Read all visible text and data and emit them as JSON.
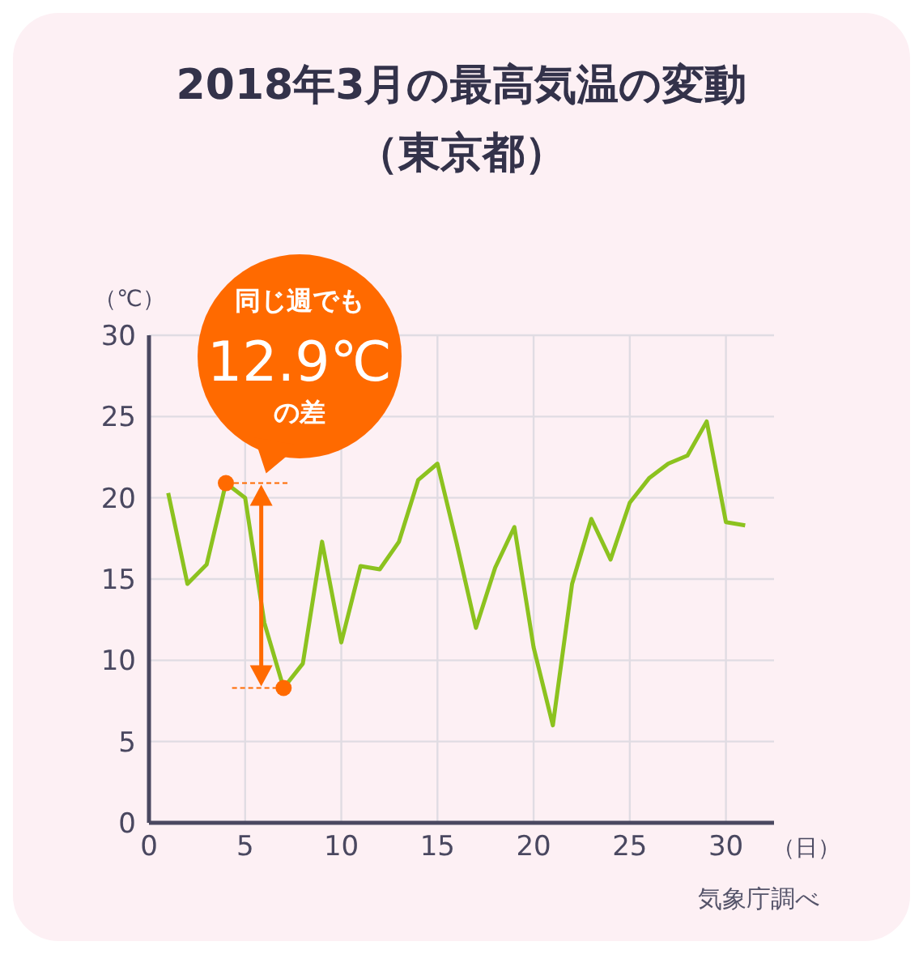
{
  "chart_data": {
    "type": "line",
    "title": "2018年3月の最高気温の変動",
    "subtitle": "（東京都）",
    "xlabel": "（日）",
    "ylabel": "（℃）",
    "x": [
      1,
      2,
      3,
      4,
      5,
      6,
      7,
      8,
      9,
      10,
      11,
      12,
      13,
      14,
      15,
      16,
      17,
      18,
      19,
      20,
      21,
      22,
      23,
      24,
      25,
      26,
      27,
      28,
      29,
      30,
      31
    ],
    "series": [
      {
        "color": "#8cc21f",
        "values": [
          20.3,
          14.7,
          15.9,
          20.9,
          20.0,
          12.3,
          8.3,
          9.8,
          17.3,
          11.1,
          15.8,
          15.6,
          17.3,
          21.1,
          22.1,
          17.2,
          12.0,
          15.7,
          18.2,
          10.8,
          6.0,
          14.7,
          18.7,
          16.2,
          19.7,
          21.2,
          22.1,
          22.6,
          24.7,
          18.5,
          18.3
        ]
      },
      {
        "type": "scatter",
        "color": "#ff6a00",
        "marker": "circle",
        "x": [
          4,
          7
        ],
        "values": [
          20.9,
          8.3
        ]
      }
    ],
    "xlim": [
      0,
      32.5
    ],
    "xticks": [
      0,
      5,
      10,
      15,
      20,
      25,
      30
    ],
    "ylim": [
      0,
      30
    ],
    "yticks": [
      0,
      5,
      10,
      15,
      20,
      25,
      30
    ],
    "grid": true,
    "annotations": [
      "同じ週でも",
      "12.9℃",
      "の差",
      "気象庁調べ"
    ]
  }
}
